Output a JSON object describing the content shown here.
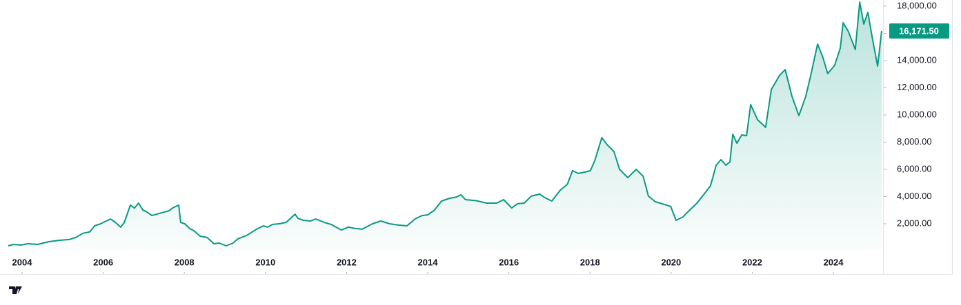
{
  "chart_data": {
    "type": "area",
    "x": [
      2003.66,
      2003.8,
      2003.97,
      2004.14,
      2004.39,
      2004.65,
      2004.9,
      2005.16,
      2005.33,
      2005.5,
      2005.67,
      2005.79,
      2005.94,
      2006.04,
      2006.18,
      2006.3,
      2006.43,
      2006.52,
      2006.67,
      2006.77,
      2006.87,
      2006.98,
      2007.06,
      2007.2,
      2007.37,
      2007.62,
      2007.71,
      2007.86,
      2007.91,
      2008.01,
      2008.13,
      2008.23,
      2008.39,
      2008.56,
      2008.73,
      2008.86,
      2009.03,
      2009.2,
      2009.32,
      2009.54,
      2009.78,
      2009.95,
      2010.05,
      2010.17,
      2010.34,
      2010.51,
      2010.73,
      2010.8,
      2010.94,
      2011.11,
      2011.24,
      2011.45,
      2011.62,
      2011.87,
      2012.04,
      2012.21,
      2012.38,
      2012.64,
      2012.84,
      2013.06,
      2013.29,
      2013.49,
      2013.69,
      2013.86,
      2014.0,
      2014.17,
      2014.34,
      2014.54,
      2014.71,
      2014.82,
      2014.93,
      2015.19,
      2015.45,
      2015.7,
      2015.87,
      2016.07,
      2016.21,
      2016.38,
      2016.55,
      2016.76,
      2016.89,
      2017.06,
      2017.27,
      2017.44,
      2017.57,
      2017.71,
      2017.88,
      2018.01,
      2018.12,
      2018.29,
      2018.42,
      2018.59,
      2018.73,
      2018.93,
      2019.14,
      2019.31,
      2019.44,
      2019.61,
      2019.78,
      2019.99,
      2020.12,
      2020.29,
      2020.46,
      2020.63,
      2020.8,
      2020.97,
      2021.11,
      2021.23,
      2021.35,
      2021.45,
      2021.52,
      2021.62,
      2021.74,
      2021.86,
      2021.96,
      2022.13,
      2022.33,
      2022.47,
      2022.67,
      2022.81,
      2022.98,
      2023.15,
      2023.32,
      2023.44,
      2023.61,
      2023.74,
      2023.86,
      2024.03,
      2024.17,
      2024.24,
      2024.37,
      2024.54,
      2024.65,
      2024.75,
      2024.85,
      2024.95,
      2025.09,
      2025.19
    ],
    "series": [
      {
        "color": "#089981",
        "values": [
          380,
          480,
          430,
          530,
          480,
          680,
          780,
          840,
          1000,
          1300,
          1400,
          1850,
          2000,
          2150,
          2350,
          2100,
          1750,
          2100,
          3370,
          3150,
          3520,
          3000,
          2900,
          2600,
          2750,
          2950,
          3160,
          3370,
          2100,
          2000,
          1650,
          1500,
          1090,
          990,
          530,
          580,
          380,
          580,
          890,
          1150,
          1600,
          1850,
          1750,
          1950,
          2000,
          2100,
          2710,
          2400,
          2250,
          2200,
          2350,
          2100,
          1950,
          1540,
          1750,
          1650,
          1600,
          2000,
          2200,
          2000,
          1900,
          1850,
          2360,
          2600,
          2650,
          3010,
          3670,
          3870,
          3970,
          4130,
          3770,
          3700,
          3520,
          3520,
          3770,
          3160,
          3470,
          3520,
          4030,
          4180,
          3920,
          3670,
          4480,
          4890,
          5900,
          5700,
          5800,
          5900,
          6660,
          8330,
          7820,
          7320,
          6000,
          5390,
          6000,
          5500,
          4030,
          3620,
          3470,
          3270,
          2250,
          2500,
          3010,
          3500,
          4130,
          4790,
          6300,
          6710,
          6300,
          6550,
          8580,
          7920,
          8530,
          8480,
          10760,
          9650,
          9090,
          11870,
          12890,
          13340,
          11370,
          9950,
          11370,
          12890,
          15210,
          14250,
          13040,
          13640,
          14910,
          16780,
          16130,
          14810,
          18300,
          16680,
          17540,
          15820,
          13590,
          16171.5
        ]
      }
    ],
    "xlim": [
      2003.66,
      2025.19
    ],
    "xticks": [
      2004,
      2006,
      2008,
      2010,
      2012,
      2014,
      2016,
      2018,
      2020,
      2022,
      2024
    ],
    "ylim": [
      0,
      18450
    ],
    "yticks": [
      {
        "value": 2000,
        "label": "2,000.00"
      },
      {
        "value": 4000,
        "label": "4,000.00"
      },
      {
        "value": 6000,
        "label": "6,000.00"
      },
      {
        "value": 8000,
        "label": "8,000.00"
      },
      {
        "value": 10000,
        "label": "10,000.00"
      },
      {
        "value": 12000,
        "label": "12,000.00"
      },
      {
        "value": 14000,
        "label": "14,000.00"
      },
      {
        "value": 16000,
        "label": "16,000.00"
      },
      {
        "value": 18000,
        "label": "18,000.00"
      }
    ],
    "price_label": {
      "value": 16171.5,
      "label": "16,171.50"
    },
    "brand": "TradingView"
  }
}
